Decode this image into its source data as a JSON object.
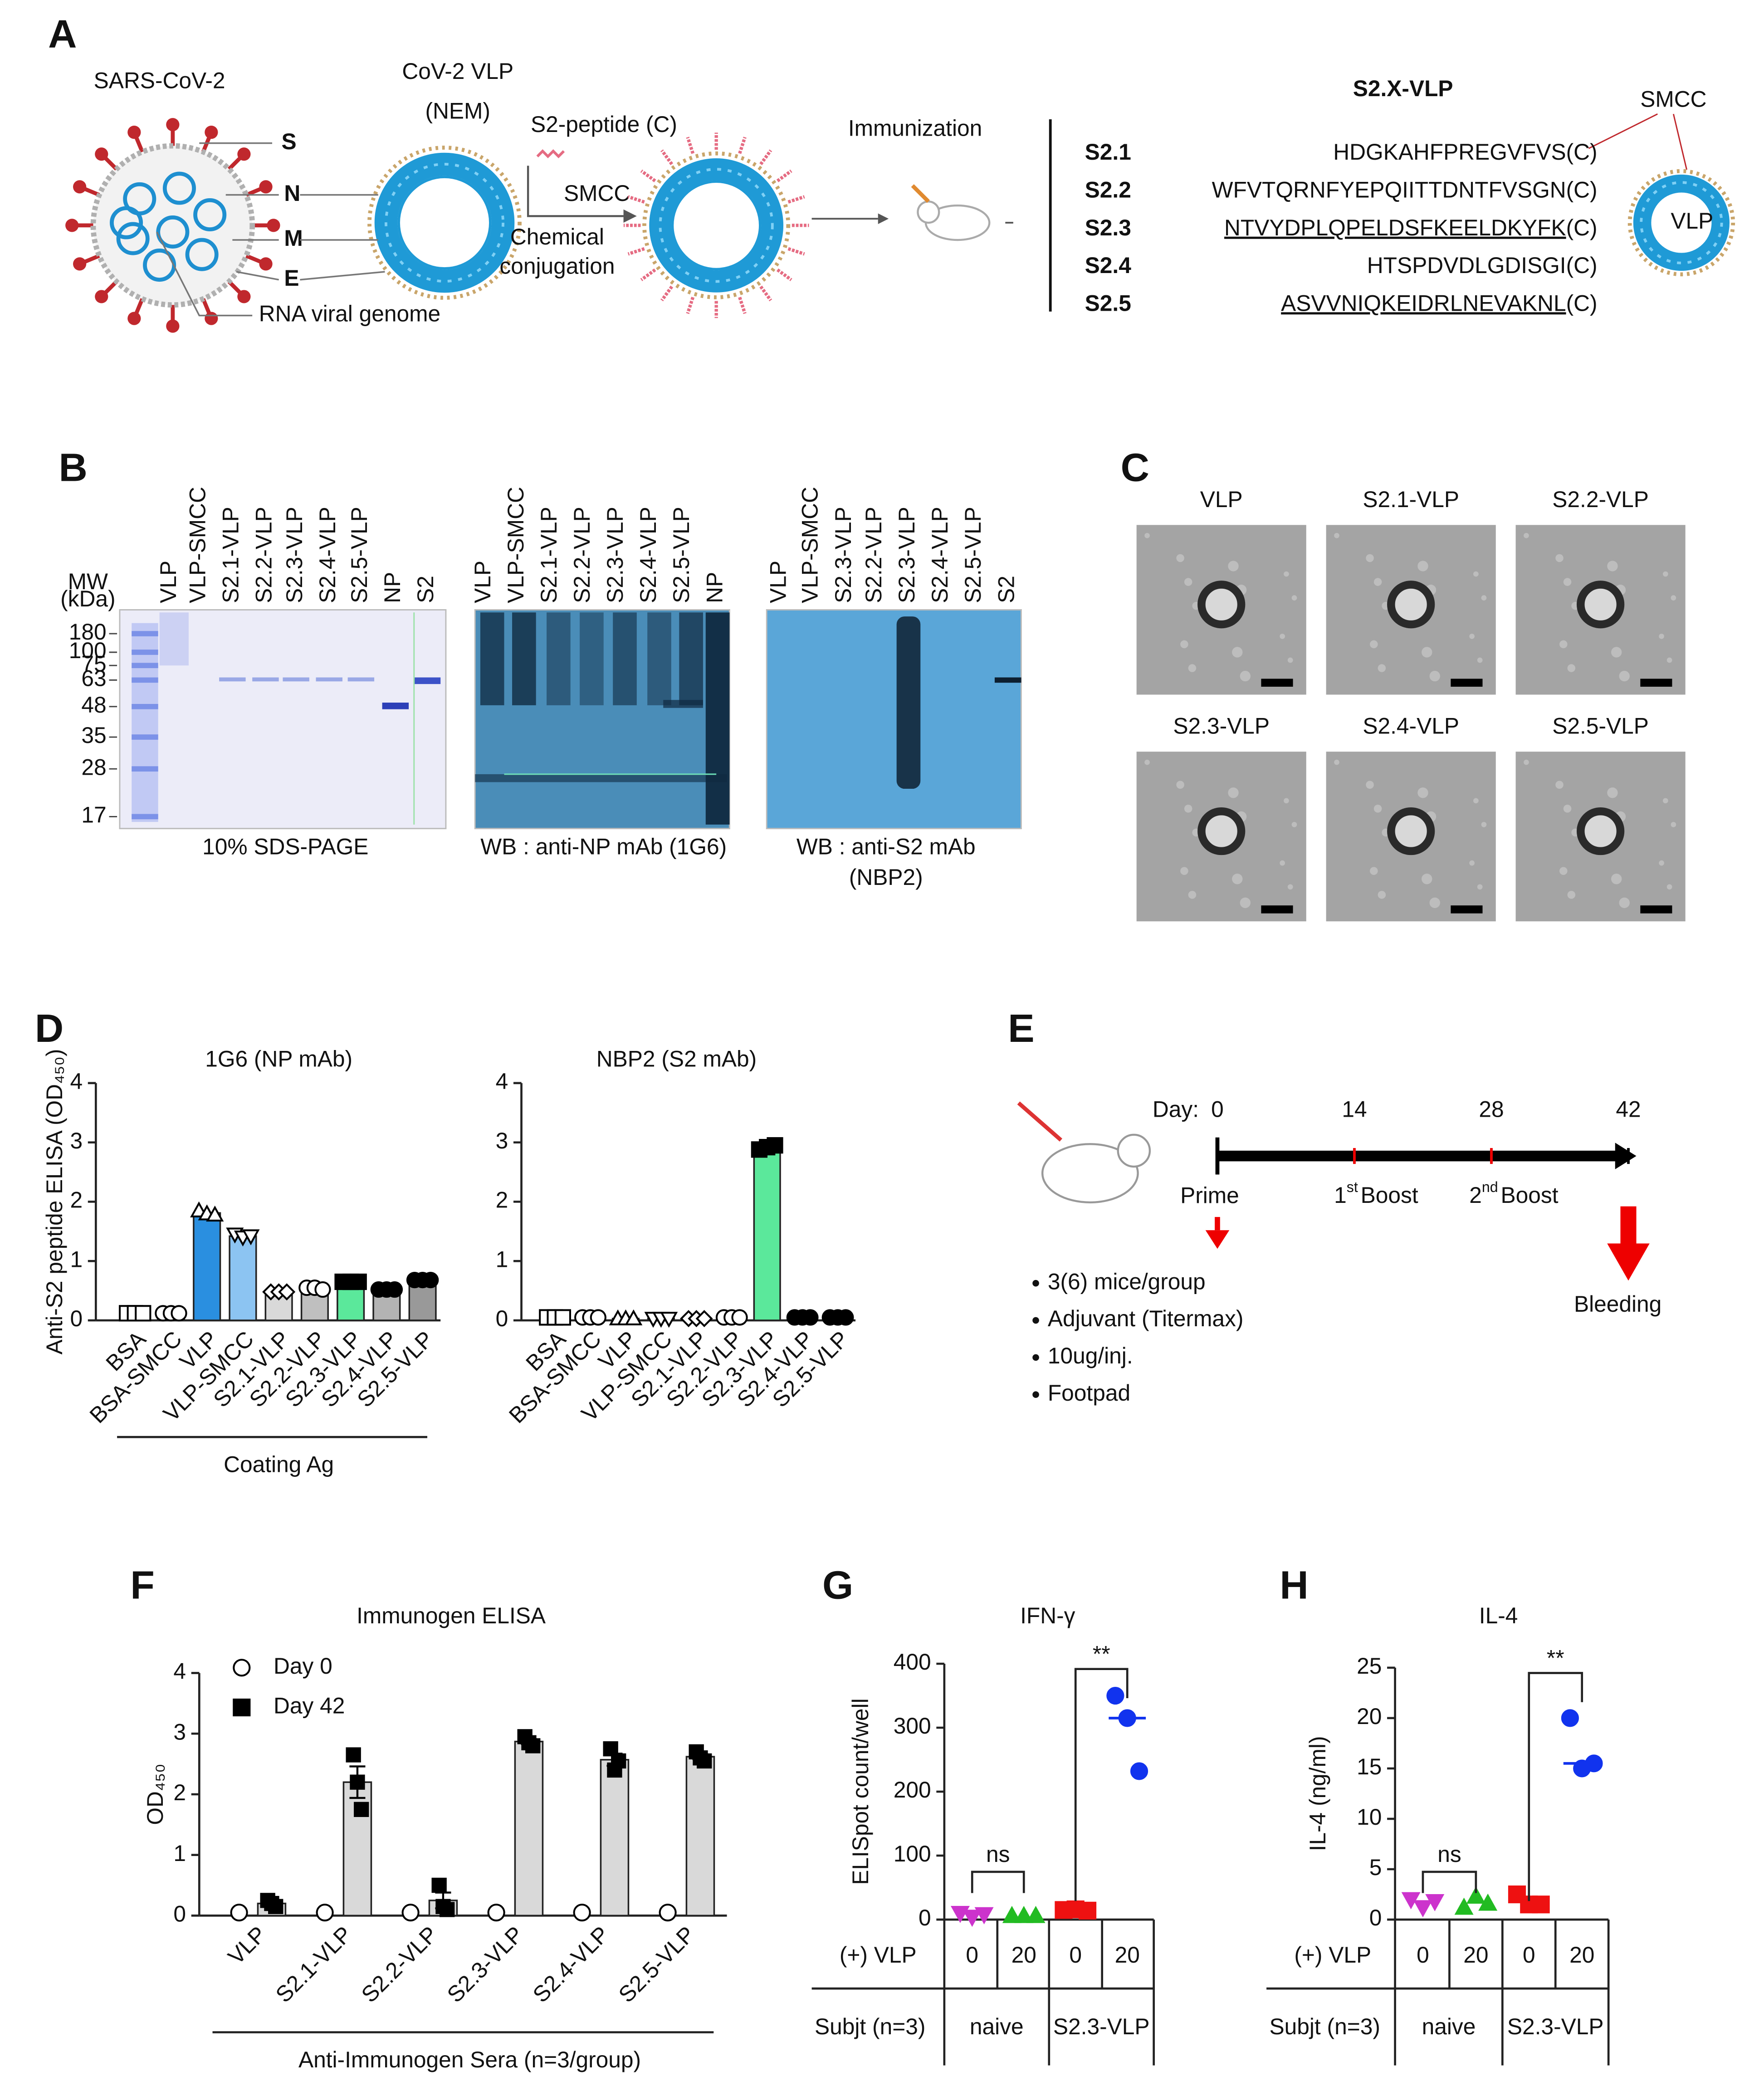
{
  "panel_labels": [
    "A",
    "B",
    "C",
    "D",
    "E",
    "F",
    "G",
    "H"
  ],
  "panel_a": {
    "virus": {
      "title": "SARS-CoV-2",
      "parts": [
        "S",
        "N",
        "M",
        "E"
      ],
      "genome": "RNA viral genome"
    },
    "vlp": {
      "title": "CoV-2 VLP",
      "subtitle": "(NEM)"
    },
    "conjugation": {
      "peptide": "S2-peptide (C)",
      "linker": "SMCC",
      "method": [
        "Chemical",
        "conjugation"
      ]
    },
    "immunization": "Immunization",
    "construct": {
      "title": "S2.X-VLP",
      "linker": "SMCC",
      "particle": "VLP",
      "terminal": "(C)",
      "peptides": [
        {
          "name": "S2.1",
          "sequence": "HDGKAHFPREGVFVS",
          "underlined": false
        },
        {
          "name": "S2.2",
          "sequence": "WFVTQRNFYEPQIITTDNTFVSGN",
          "underlined": false
        },
        {
          "name": "S2.3",
          "sequence": "NTVYDPLQPELDSFKEELDKYFK",
          "underlined": true
        },
        {
          "name": "S2.4",
          "sequence": "HTSPDVDLGDISGI",
          "underlined": false
        },
        {
          "name": "S2.5",
          "sequence": "ASVVNIQKEIDRLNEVAKNL",
          "underlined": true
        }
      ]
    }
  },
  "panel_b": {
    "mw_label": [
      "MW",
      "(kDa)"
    ],
    "mw": [
      180,
      100,
      75,
      63,
      48,
      35,
      28,
      17
    ],
    "gels": [
      {
        "lanes": [
          "VLP",
          "VLP-SMCC",
          "S2.1-VLP",
          "S2.2-VLP",
          "S2.3-VLP",
          "S2.4-VLP",
          "S2.5-VLP",
          "NP",
          "S2"
        ],
        "caption": [
          "10% SDS-PAGE"
        ]
      },
      {
        "lanes": [
          "VLP",
          "VLP-SMCC",
          "S2.1-VLP",
          "S2.2-VLP",
          "S2.3-VLP",
          "S2.4-VLP",
          "S2.5-VLP",
          "NP"
        ],
        "caption": [
          "WB : anti-NP mAb (1G6)"
        ]
      },
      {
        "lanes": [
          "VLP",
          "VLP-SMCC",
          "S2.3-VLP",
          "S2.2-VLP",
          "S2.3-VLP",
          "S2.4-VLP",
          "S2.5-VLP",
          "S2"
        ],
        "caption": [
          "WB : anti-S2 mAb",
          "(NBP2)"
        ]
      }
    ]
  },
  "panel_c": {
    "labels": [
      "VLP",
      "S2.1-VLP",
      "S2.2-VLP",
      "S2.3-VLP",
      "S2.4-VLP",
      "S2.5-VLP"
    ]
  },
  "panel_e": {
    "day_label": "Day:",
    "days": [
      0,
      14,
      28,
      42
    ],
    "prime": "Prime",
    "boosts": [
      {
        "n": "1",
        "sup": "st",
        "label": "Boost"
      },
      {
        "n": "2",
        "sup": "nd",
        "label": "Boost"
      }
    ],
    "bleeding": "Bleeding",
    "conditions": [
      "3(6) mice/group",
      "Adjuvant (Titermax)",
      "10ug/inj.",
      "Footpad"
    ]
  },
  "chart_data": [
    {
      "type": "bar",
      "title": "1G6 (NP mAb)",
      "y_label": "Anti-S2 peptide ELISA (OD₄₅₀)",
      "x_label": "Coating Ag",
      "categories": [
        "BSA",
        "BSA-SMCC",
        "VLP",
        "VLP-SMCC",
        "S2.1-VLP",
        "S2.2-VLP",
        "S2.3-VLP",
        "S2.4-VLP",
        "S2.5-VLP"
      ],
      "values": [
        0.12,
        0.12,
        1.81,
        1.42,
        0.48,
        0.54,
        0.65,
        0.52,
        0.68
      ],
      "replicates": [
        [
          0.12,
          0.12,
          0.12
        ],
        [
          0.12,
          0.12,
          0.12
        ],
        [
          1.85,
          1.8,
          1.78
        ],
        [
          1.45,
          1.4,
          1.42
        ],
        [
          0.48,
          0.48,
          0.48
        ],
        [
          0.55,
          0.55,
          0.52
        ],
        [
          0.65,
          0.65,
          0.65
        ],
        [
          0.52,
          0.52,
          0.52
        ],
        [
          0.68,
          0.68,
          0.68
        ]
      ],
      "colors": [
        "#ffffff",
        "#ffffff",
        "#2a8fe0",
        "#8cc4f2",
        "#d9d9d9",
        "#bfbfbf",
        "#5be89b",
        "#b3b3b3",
        "#999999"
      ],
      "markers": [
        {
          "shape": "square",
          "filled": false
        },
        {
          "shape": "circle",
          "filled": false
        },
        {
          "shape": "triangle",
          "filled": false
        },
        {
          "shape": "triangle-down",
          "filled": false
        },
        {
          "shape": "diamond",
          "filled": false
        },
        {
          "shape": "circle",
          "filled": false
        },
        {
          "shape": "square",
          "filled": true
        },
        {
          "shape": "circle",
          "filled": true
        },
        {
          "shape": "circle",
          "filled": true
        }
      ],
      "ylim": [
        0,
        4
      ],
      "yticks": [
        0,
        1,
        2,
        3,
        4
      ]
    },
    {
      "type": "bar",
      "title": "NBP2 (S2 mAb)",
      "categories": [
        "BSA",
        "BSA-SMCC",
        "VLP",
        "VLP-SMCC",
        "S2.1-VLP",
        "S2.2-VLP",
        "S2.3-VLP",
        "S2.4-VLP",
        "S2.5-VLP"
      ],
      "values": [
        0.05,
        0.05,
        0.03,
        0.03,
        0.03,
        0.05,
        2.92,
        0.05,
        0.05
      ],
      "replicates": [
        [
          0.05,
          0.05,
          0.05
        ],
        [
          0.05,
          0.05,
          0.05
        ],
        [
          0.03,
          0.03,
          0.03
        ],
        [
          0.03,
          0.03,
          0.03
        ],
        [
          0.03,
          0.03,
          0.03
        ],
        [
          0.05,
          0.05,
          0.05
        ],
        [
          2.88,
          2.92,
          2.95
        ],
        [
          0.05,
          0.05,
          0.05
        ],
        [
          0.05,
          0.05,
          0.05
        ]
      ],
      "colors": [
        "#ffffff",
        "#ffffff",
        "#ffffff",
        "#ffffff",
        "#ffffff",
        "#ffffff",
        "#5be89b",
        "#ffffff",
        "#ffffff"
      ],
      "markers": [
        {
          "shape": "square",
          "filled": false
        },
        {
          "shape": "circle",
          "filled": false
        },
        {
          "shape": "triangle",
          "filled": false
        },
        {
          "shape": "triangle-down",
          "filled": false
        },
        {
          "shape": "diamond",
          "filled": false
        },
        {
          "shape": "circle",
          "filled": false
        },
        {
          "shape": "square",
          "filled": true
        },
        {
          "shape": "circle",
          "filled": true
        },
        {
          "shape": "circle",
          "filled": true
        }
      ],
      "ylim": [
        0,
        4
      ],
      "yticks": [
        0,
        1,
        2,
        3,
        4
      ]
    },
    {
      "type": "bar",
      "title": "Immunogen ELISA",
      "y_label": "OD₄₅₀",
      "x_label": "Anti-Immunogen Sera (n=3/group)",
      "categories": [
        "VLP",
        "S2.1-VLP",
        "S2.2-VLP",
        "S2.3-VLP",
        "S2.4-VLP",
        "S2.5-VLP"
      ],
      "legend": "upper left",
      "series": [
        {
          "name": "Day 0",
          "color": "#ffffff",
          "marker": {
            "shape": "circle",
            "filled": false
          },
          "values": [
            0.05,
            0.05,
            0.05,
            0.05,
            0.05,
            0.05
          ]
        },
        {
          "name": "Day 42",
          "color": "#d9d9d9",
          "marker": {
            "shape": "square",
            "filled": true
          },
          "values": [
            0.2,
            2.2,
            0.25,
            2.87,
            2.57,
            2.62
          ],
          "errors": [
            0.03,
            0.26,
            0.13,
            0.04,
            0.1,
            0.04
          ],
          "replicates": [
            [
              0.25,
              0.2,
              0.15
            ],
            [
              2.65,
              2.2,
              1.75
            ],
            [
              0.5,
              0.15,
              0.1
            ],
            [
              2.95,
              2.85,
              2.8
            ],
            [
              2.75,
              2.4,
              2.55
            ],
            [
              2.7,
              2.6,
              2.55
            ]
          ]
        }
      ],
      "ylim": [
        0,
        4
      ],
      "yticks": [
        0,
        1,
        2,
        3,
        4
      ]
    },
    {
      "type": "dot",
      "title": "IFN-γ",
      "y_label": "ELISpot count/well",
      "ylim": [
        0,
        400
      ],
      "yticks": [
        0,
        100,
        200,
        300,
        400
      ],
      "groups": [
        {
          "color": "#cc33cc",
          "marker": "triangle-down",
          "values": [
            10,
            4,
            8
          ]
        },
        {
          "color": "#22bb22",
          "marker": "triangle",
          "values": [
            6,
            6,
            6
          ]
        },
        {
          "color": "#ee1111",
          "marker": "square",
          "values": [
            15,
            16,
            14
          ]
        },
        {
          "color": "#1133ee",
          "marker": "circle",
          "values": [
            350,
            315,
            232
          ],
          "median": 315
        }
      ],
      "annotations": [
        "ns",
        "**"
      ],
      "table": {
        "row_labels": [
          "(+) VLP",
          "Subjt (n=3)"
        ],
        "doses": [
          0,
          20,
          0,
          20
        ],
        "subjects": [
          "naive",
          "S2.3-VLP"
        ]
      }
    },
    {
      "type": "dot",
      "title": "IL-4",
      "y_label": "IL-4 (ng/ml)",
      "ylim": [
        0,
        25
      ],
      "yticks": [
        0,
        5,
        10,
        15,
        20,
        25
      ],
      "groups": [
        {
          "color": "#cc33cc",
          "marker": "triangle-down",
          "values": [
            2,
            1.2,
            1.8
          ]
        },
        {
          "color": "#22bb22",
          "marker": "triangle",
          "values": [
            1.2,
            2.3,
            1.6
          ]
        },
        {
          "color": "#ee1111",
          "marker": "square",
          "values": [
            2.5,
            1.5,
            1.5
          ]
        },
        {
          "color": "#1133ee",
          "marker": "circle",
          "values": [
            20,
            15,
            15.5
          ],
          "median": 15.5
        }
      ],
      "annotations": [
        "ns",
        "**"
      ],
      "table": {
        "row_labels": [
          "(+) VLP",
          "Subjt (n=3)"
        ],
        "doses": [
          0,
          20,
          0,
          20
        ],
        "subjects": [
          "naive",
          "S2.3-VLP"
        ]
      }
    }
  ]
}
